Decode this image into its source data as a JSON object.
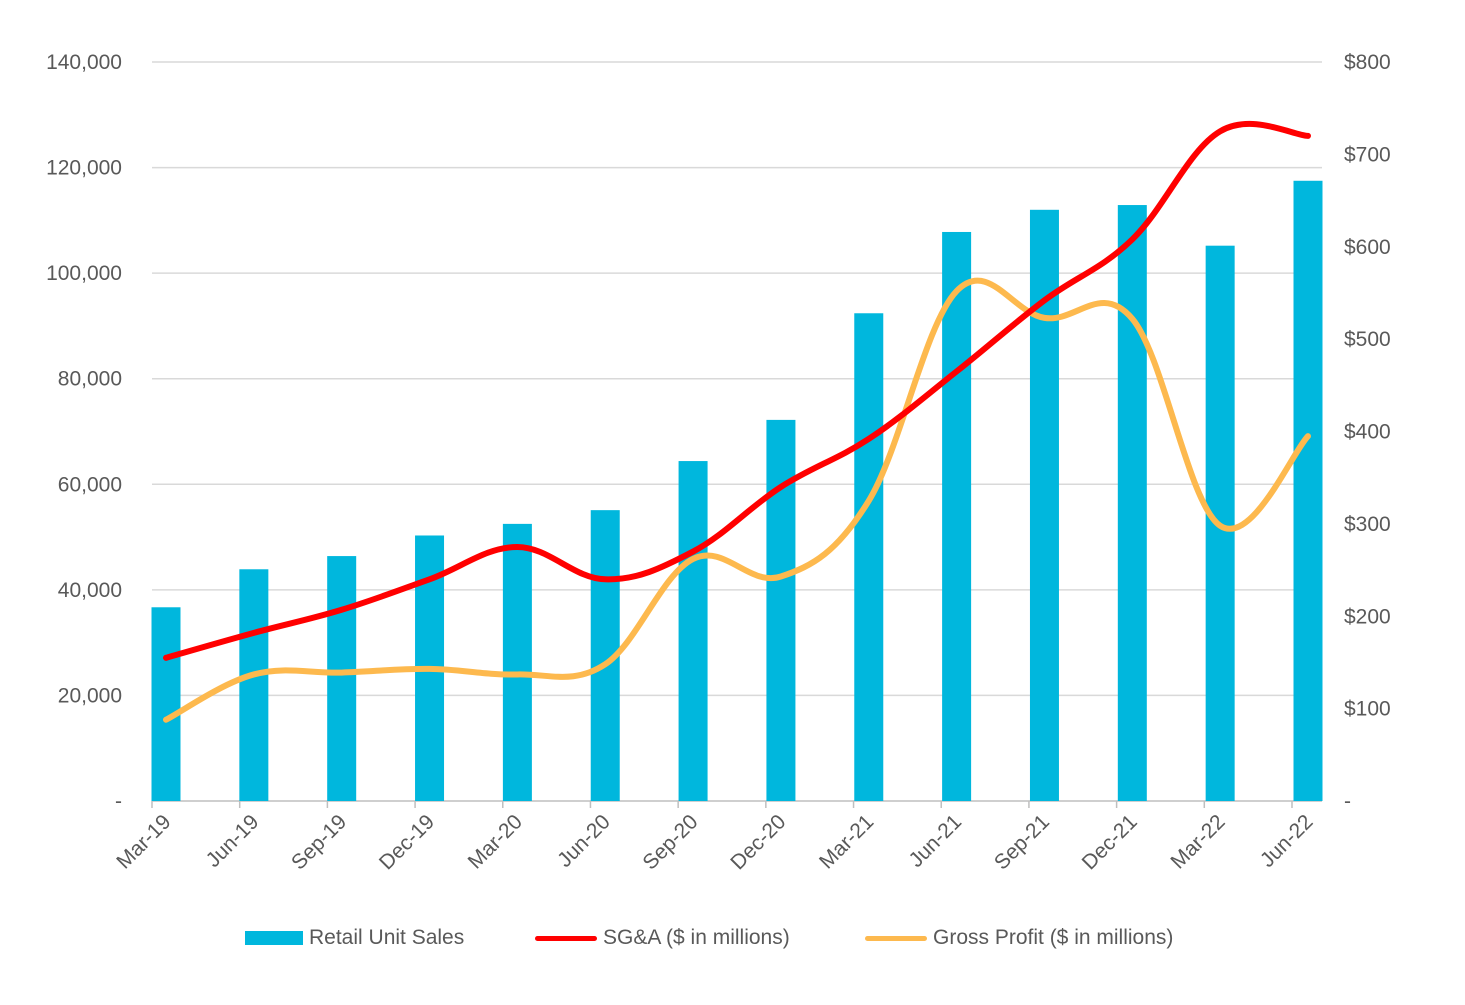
{
  "chart_data": {
    "type": "bar",
    "categories": [
      "Mar-19",
      "Jun-19",
      "Sep-19",
      "Dec-19",
      "Mar-20",
      "Jun-20",
      "Sep-20",
      "Dec-20",
      "Mar-21",
      "Jun-21",
      "Sep-21",
      "Dec-21",
      "Mar-22",
      "Jun-22"
    ],
    "series": [
      {
        "name": "Retail Unit Sales",
        "kind": "bar",
        "axis": "left",
        "color": "#00B7DD",
        "values": [
          36700,
          43900,
          46400,
          50300,
          52500,
          55100,
          64400,
          72200,
          92400,
          107800,
          112000,
          112900,
          105200,
          117500
        ]
      },
      {
        "name": "SG&A ($ in millions)",
        "kind": "line",
        "axis": "right",
        "color": "#FF0000",
        "values": [
          155,
          182,
          207,
          240,
          275,
          240,
          270,
          340,
          392,
          465,
          542,
          608,
          725,
          720
        ]
      },
      {
        "name": "Gross Profit ($ in millions)",
        "kind": "line",
        "axis": "right",
        "color": "#FDB94E",
        "values": [
          88,
          137,
          139,
          143,
          137,
          148,
          262,
          243,
          325,
          552,
          523,
          522,
          298,
          395
        ]
      }
    ],
    "y_left": {
      "range": [
        0,
        140000
      ],
      "ticks": [
        0,
        20000,
        40000,
        60000,
        80000,
        100000,
        120000,
        140000
      ],
      "tick_labels": [
        "-",
        "20,000",
        "40,000",
        "60,000",
        "80,000",
        "100,000",
        "120,000",
        "140,000"
      ]
    },
    "y_right": {
      "range": [
        0,
        800
      ],
      "ticks": [
        0,
        100,
        200,
        300,
        400,
        500,
        600,
        700,
        800
      ],
      "tick_labels": [
        "-",
        "$100",
        "$200",
        "$300",
        "$400",
        "$500",
        "$600",
        "$700",
        "$800"
      ]
    },
    "grid": true,
    "legend_position": "bottom"
  }
}
